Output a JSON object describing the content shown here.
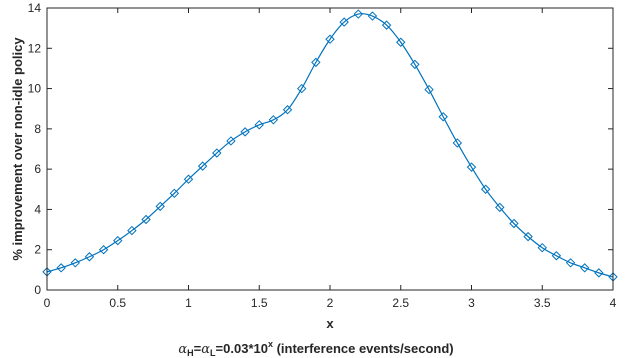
{
  "chart_data": {
    "type": "line",
    "xlabel": "x",
    "caption": {
      "alpha_symbol": "α",
      "sub_h": "H",
      "sub_l": "L",
      "equals": "=",
      "body": "=0.03*10",
      "exponent": "x",
      "units": " (interference events/second)"
    },
    "ylabel": "% improvement over non-idle policy",
    "xlim": [
      0,
      4
    ],
    "ylim": [
      0,
      14
    ],
    "x_ticks": [
      0,
      0.5,
      1,
      1.5,
      2,
      2.5,
      3,
      3.5,
      4
    ],
    "x_tick_labels": [
      "0",
      "0.5",
      "1",
      "1.5",
      "2",
      "2.5",
      "3",
      "3.5",
      "4"
    ],
    "y_ticks": [
      0,
      2,
      4,
      6,
      8,
      10,
      12,
      14
    ],
    "y_tick_labels": [
      "0",
      "2",
      "4",
      "6",
      "8",
      "10",
      "12",
      "14"
    ],
    "grid": false,
    "marker": "diamond",
    "color": "#0072BD",
    "series": [
      {
        "x": [
          0,
          0.1,
          0.2,
          0.3,
          0.4,
          0.5,
          0.6,
          0.7,
          0.8,
          0.9,
          1.0,
          1.1,
          1.2,
          1.3,
          1.4,
          1.5,
          1.6,
          1.7,
          1.8,
          1.9,
          2.0,
          2.1,
          2.2,
          2.3,
          2.4,
          2.5,
          2.6,
          2.7,
          2.8,
          2.9,
          3.0,
          3.1,
          3.2,
          3.3,
          3.4,
          3.5,
          3.6,
          3.7,
          3.8,
          3.9,
          4.0
        ],
        "y": [
          0.9,
          1.1,
          1.35,
          1.65,
          2.0,
          2.45,
          2.95,
          3.5,
          4.15,
          4.8,
          5.5,
          6.15,
          6.8,
          7.4,
          7.85,
          8.2,
          8.45,
          8.95,
          10.0,
          11.3,
          12.45,
          13.3,
          13.7,
          13.6,
          13.15,
          12.3,
          11.2,
          9.95,
          8.6,
          7.3,
          6.1,
          5.0,
          4.1,
          3.3,
          2.65,
          2.1,
          1.7,
          1.35,
          1.1,
          0.85,
          0.65
        ]
      }
    ]
  }
}
